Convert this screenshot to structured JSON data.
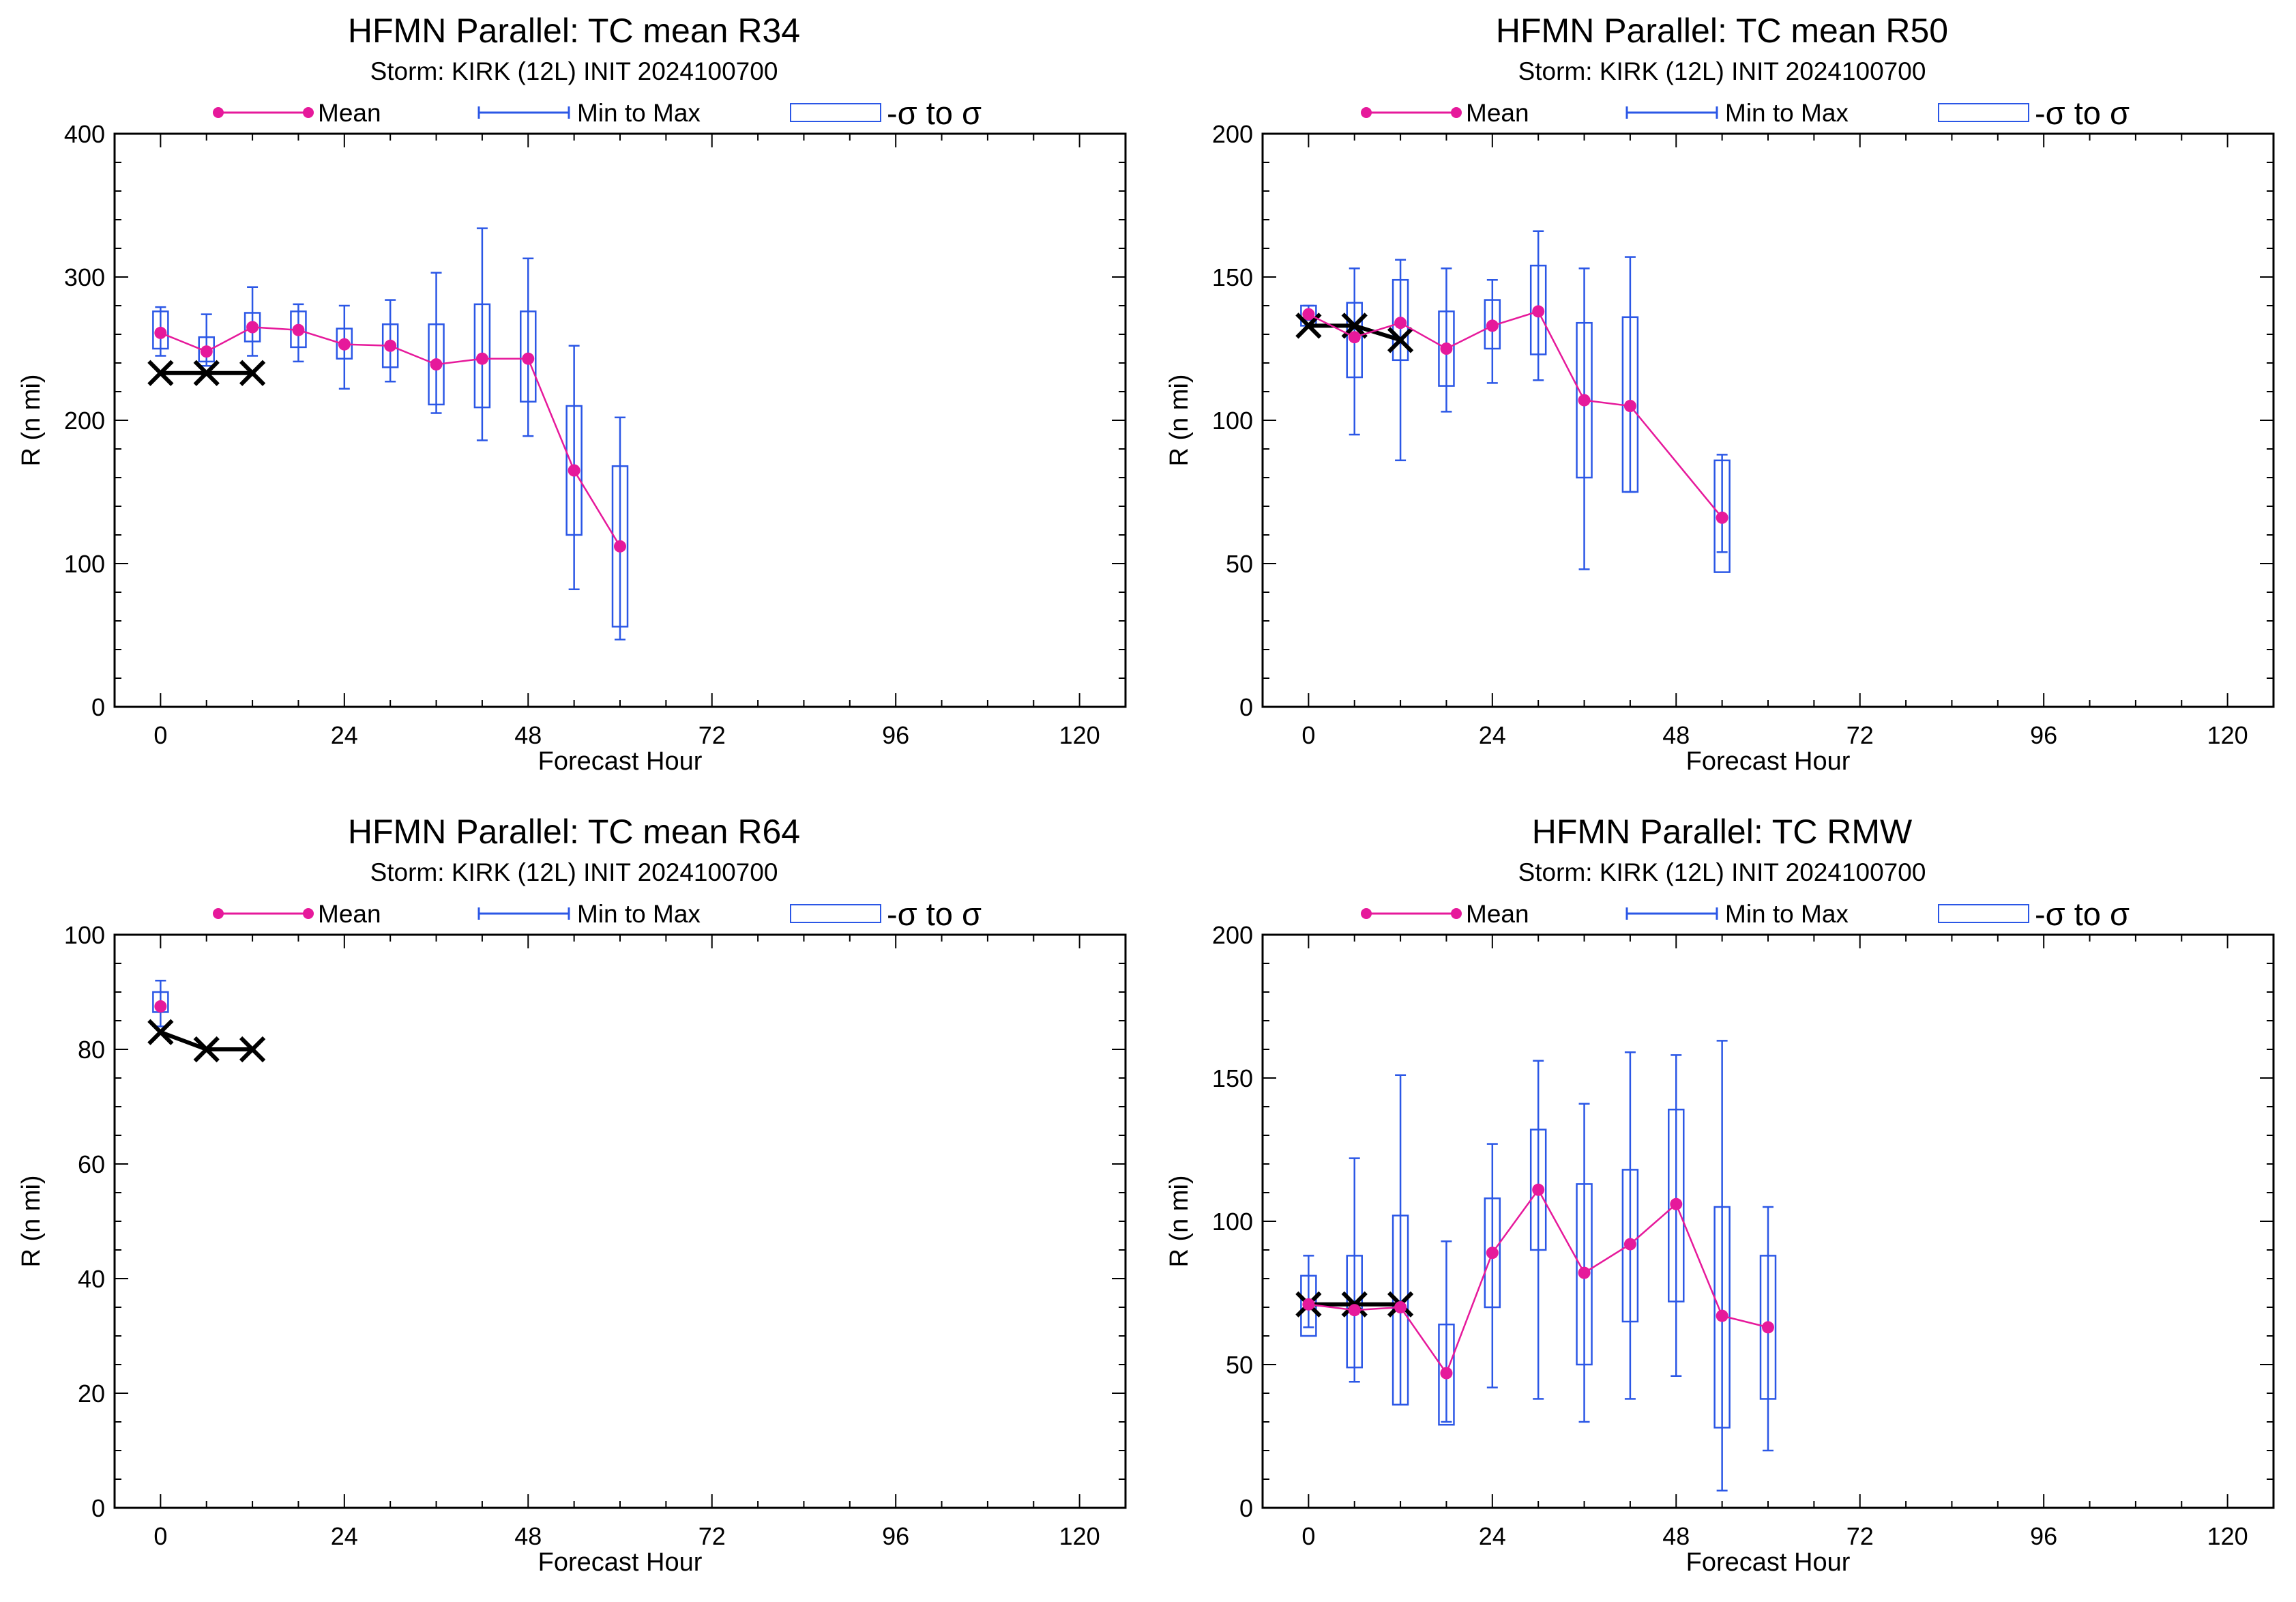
{
  "colors": {
    "mean": "#e6199b",
    "range": "#2b57e6",
    "box": "#2b57e6",
    "best_track": "#000000",
    "axis": "#000000"
  },
  "legend_labels": {
    "mean": "Mean",
    "range": "Min to Max",
    "sigma": "-σ to σ"
  },
  "chart_data": [
    {
      "type": "box",
      "title": "HFMN Parallel: TC mean R34",
      "subtitle": "Storm: KIRK (12L) INIT 2024100700",
      "xlabel": "Forecast Hour",
      "ylabel": "R (n mi)",
      "xlim": [
        -6,
        126
      ],
      "ylim": [
        0,
        400
      ],
      "xticks": [
        0,
        24,
        48,
        72,
        96,
        120
      ],
      "yticks": [
        0,
        100,
        200,
        300,
        400
      ],
      "y_minor_step": 20,
      "legend_position": "top",
      "mean": {
        "x": [
          0,
          6,
          12,
          18,
          24,
          30,
          36,
          42,
          48,
          54,
          60
        ],
        "y": [
          261,
          248,
          265,
          263,
          253,
          252,
          239,
          243,
          243,
          165,
          112
        ]
      },
      "min_to_max": [
        [
          0,
          245,
          279
        ],
        [
          6,
          238,
          274
        ],
        [
          12,
          245,
          293
        ],
        [
          18,
          241,
          281
        ],
        [
          24,
          222,
          280
        ],
        [
          30,
          227,
          284
        ],
        [
          36,
          205,
          303
        ],
        [
          42,
          186,
          334
        ],
        [
          48,
          189,
          313
        ],
        [
          54,
          82,
          252
        ],
        [
          60,
          47,
          202
        ]
      ],
      "sigma_box": [
        [
          0,
          250,
          276
        ],
        [
          6,
          241,
          258
        ],
        [
          12,
          255,
          275
        ],
        [
          18,
          251,
          276
        ],
        [
          24,
          243,
          264
        ],
        [
          30,
          237,
          267
        ],
        [
          36,
          211,
          267
        ],
        [
          42,
          209,
          281
        ],
        [
          48,
          213,
          276
        ],
        [
          54,
          120,
          210
        ],
        [
          60,
          56,
          168
        ]
      ],
      "best_track": {
        "x": [
          0,
          6,
          12
        ],
        "y": [
          233,
          233,
          233
        ]
      }
    },
    {
      "type": "box",
      "title": "HFMN Parallel: TC mean R50",
      "subtitle": "Storm: KIRK (12L) INIT 2024100700",
      "xlabel": "Forecast Hour",
      "ylabel": "R (n mi)",
      "xlim": [
        -6,
        126
      ],
      "ylim": [
        0,
        200
      ],
      "xticks": [
        0,
        24,
        48,
        72,
        96,
        120
      ],
      "yticks": [
        0,
        50,
        100,
        150,
        200
      ],
      "y_minor_step": 10,
      "legend_position": "top",
      "mean": {
        "x": [
          0,
          6,
          12,
          18,
          24,
          30,
          36,
          42,
          54
        ],
        "y": [
          137,
          129,
          134,
          125,
          133,
          138,
          107,
          105,
          66
        ]
      },
      "min_to_max": [
        [
          0,
          135,
          140
        ],
        [
          6,
          95,
          153
        ],
        [
          12,
          86,
          156
        ],
        [
          18,
          103,
          153
        ],
        [
          24,
          113,
          149
        ],
        [
          30,
          114,
          166
        ],
        [
          36,
          48,
          153
        ],
        [
          42,
          75,
          157
        ],
        [
          54,
          54,
          88
        ]
      ],
      "sigma_box": [
        [
          0,
          133,
          140
        ],
        [
          6,
          115,
          141
        ],
        [
          12,
          121,
          149
        ],
        [
          18,
          112,
          138
        ],
        [
          24,
          125,
          142
        ],
        [
          30,
          123,
          154
        ],
        [
          36,
          80,
          134
        ],
        [
          42,
          75,
          136
        ],
        [
          54,
          47,
          86
        ]
      ],
      "best_track": {
        "x": [
          0,
          6,
          12
        ],
        "y": [
          133,
          133,
          128
        ]
      }
    },
    {
      "type": "box",
      "title": "HFMN Parallel: TC mean R64",
      "subtitle": "Storm: KIRK (12L) INIT 2024100700",
      "xlabel": "Forecast Hour",
      "ylabel": "R (n mi)",
      "xlim": [
        -6,
        126
      ],
      "ylim": [
        0,
        100
      ],
      "xticks": [
        0,
        24,
        48,
        72,
        96,
        120
      ],
      "yticks": [
        0,
        20,
        40,
        60,
        80,
        100
      ],
      "y_minor_step": 5,
      "legend_position": "top",
      "mean": {
        "x": [
          0
        ],
        "y": [
          87.5
        ]
      },
      "min_to_max": [
        [
          0,
          84,
          92
        ]
      ],
      "sigma_box": [
        [
          0,
          86.5,
          90
        ]
      ],
      "best_track": {
        "x": [
          0,
          6,
          12
        ],
        "y": [
          83,
          80,
          80
        ]
      }
    },
    {
      "type": "box",
      "title": "HFMN Parallel: TC RMW",
      "subtitle": "Storm: KIRK (12L) INIT 2024100700",
      "xlabel": "Forecast Hour",
      "ylabel": "R (n mi)",
      "xlim": [
        -6,
        126
      ],
      "ylim": [
        0,
        200
      ],
      "xticks": [
        0,
        24,
        48,
        72,
        96,
        120
      ],
      "yticks": [
        0,
        50,
        100,
        150,
        200
      ],
      "y_minor_step": 10,
      "legend_position": "top",
      "mean": {
        "x": [
          0,
          6,
          12,
          18,
          24,
          30,
          36,
          42,
          48,
          54,
          60
        ],
        "y": [
          71,
          69,
          70,
          47,
          89,
          111,
          82,
          92,
          106,
          67,
          63
        ]
      },
      "min_to_max": [
        [
          0,
          63,
          88
        ],
        [
          6,
          44,
          122
        ],
        [
          12,
          36,
          151
        ],
        [
          18,
          30,
          93
        ],
        [
          24,
          42,
          127
        ],
        [
          30,
          38,
          156
        ],
        [
          36,
          30,
          141
        ],
        [
          42,
          38,
          159
        ],
        [
          48,
          46,
          158
        ],
        [
          54,
          6,
          163
        ],
        [
          60,
          20,
          105
        ]
      ],
      "sigma_box": [
        [
          0,
          60,
          81
        ],
        [
          6,
          49,
          88
        ],
        [
          12,
          36,
          102
        ],
        [
          18,
          29,
          64
        ],
        [
          24,
          70,
          108
        ],
        [
          30,
          90,
          132
        ],
        [
          36,
          50,
          113
        ],
        [
          42,
          65,
          118
        ],
        [
          48,
          72,
          139
        ],
        [
          54,
          28,
          105
        ],
        [
          60,
          38,
          88
        ]
      ],
      "best_track": {
        "x": [
          0,
          6,
          12
        ],
        "y": [
          71,
          71,
          71
        ]
      }
    }
  ]
}
